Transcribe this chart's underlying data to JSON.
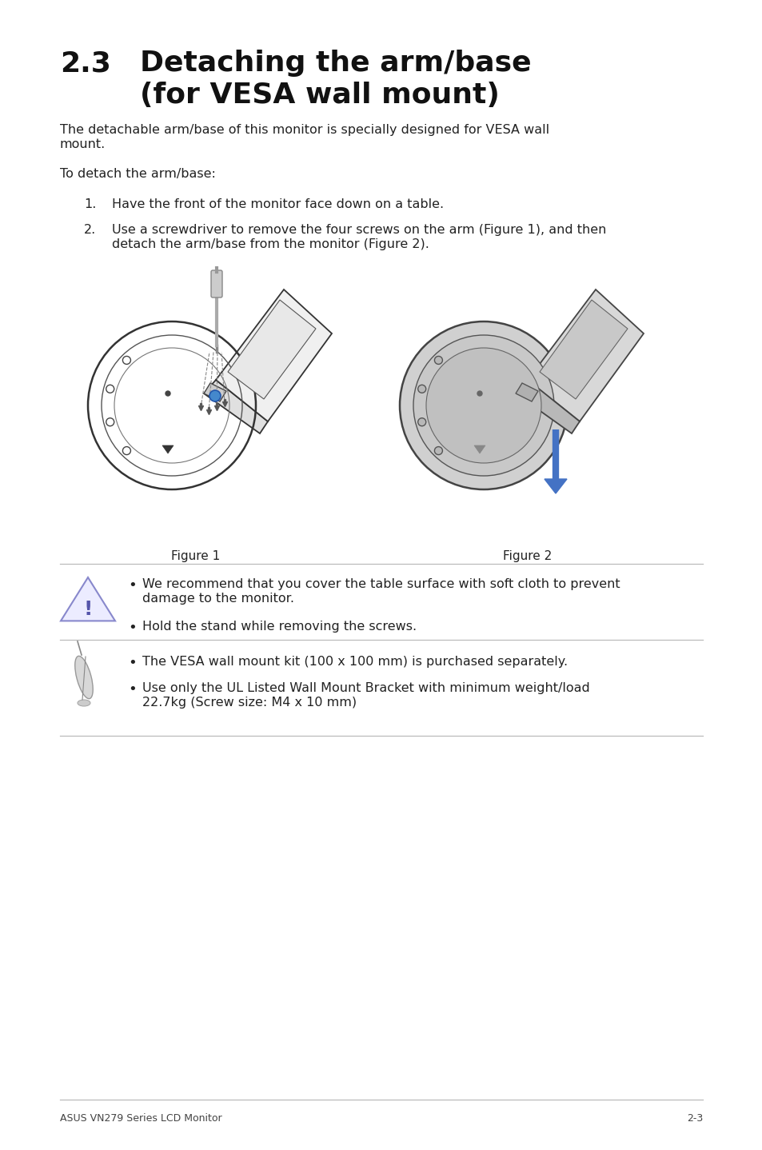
{
  "bg_color": "#ffffff",
  "title_number": "2.3",
  "title_line1": "Detaching the arm/base",
  "title_line2": "(for VESA wall mount)",
  "title_fontsize": 26,
  "body_fontsize": 11.5,
  "body_color": "#222222",
  "para1_line1": "The detachable arm/base of this monitor is specially designed for VESA wall",
  "para1_line2": "mount.",
  "para2": "To detach the arm/base:",
  "step1": "Have the front of the monitor face down on a table.",
  "step2_line1": "Use a screwdriver to remove the four screws on the arm (Figure 1), and then",
  "step2_line2": "detach the arm/base from the monitor (Figure 2).",
  "fig1_label": "Figure 1",
  "fig2_label": "Figure 2",
  "warning_bullet1_line1": "We recommend that you cover the table surface with soft cloth to prevent",
  "warning_bullet1_line2": "damage to the monitor.",
  "warning_bullet2": "Hold the stand while removing the screws.",
  "note_bullet1": "The VESA wall mount kit (100 x 100 mm) is purchased separately.",
  "note_bullet2_line1": "Use only the UL Listed Wall Mount Bracket with minimum weight/load",
  "note_bullet2_line2": "22.7kg (Screw size: M4 x 10 mm)",
  "footer_left": "ASUS VN279 Series LCD Monitor",
  "footer_right": "2-3",
  "footer_fontsize": 9,
  "line_color": "#bbbbbb",
  "warn_triangle_fill": "#ececff",
  "warn_triangle_edge": "#8888cc",
  "warn_exclaim": "#5555aa"
}
